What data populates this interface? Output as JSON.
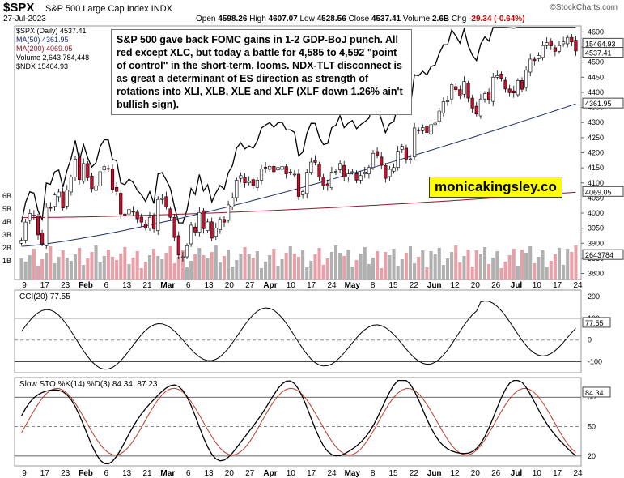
{
  "header": {
    "ticker": "$SPX",
    "subtitle": "S&P 500 Large Cap Index  INDX",
    "date": "27-Jul-2023",
    "open_label": "Open",
    "open": "4598.26",
    "high_label": "High",
    "high": "4607.07",
    "low_label": "Low",
    "low": "4528.56",
    "close_label": "Close",
    "close": "4537.41",
    "volume_label": "Volume",
    "volume": "2.6B",
    "chg_label": "Chg",
    "chg": "-29.34 (-0.64%)",
    "brand": "©StockCharts.com"
  },
  "legend": {
    "spx": "$SPX (Daily) 4537.41",
    "ma50": "MA(50) 4361.95",
    "ma200": "MA(200) 4069.05",
    "volume": "Volume 2,643,784,448",
    "ndx": "$NDX 15464.93"
  },
  "annotation": "S&P 500 gave back FOMC gains in 1-2 GDP-BoJ punch. All red except XLC, but today a battle for 4,585 to 4,592 \"point of control\" in the short-term, looms. NDX-TLT disconnect is as great a determinant of ES direction as strength of rotations into XLI, XLB, XLE and XLF (XLF down 1.26% ain't bullish sign).",
  "watermark": "monicakingsley.co",
  "colors": {
    "up": "#ffffff",
    "down": "#c8102e",
    "ma50": "#1f2d6b",
    "ma200": "#8a1a2a",
    "ndx": "#000000",
    "cci_fill": "#4e7a4e",
    "cci_neg_fill": "#8b5a4a",
    "sto_k": "#000000",
    "sto_d": "#c0392b",
    "vol_up": "#b0b0b0",
    "vol_down": "#e8a0a8"
  },
  "chart_data": [
    {
      "type": "candlestick",
      "title": "$SPX S&P 500 Large Cap Index INDX",
      "ylim": [
        3780,
        4620
      ],
      "y_ticks": [
        3800,
        3850,
        3900,
        3950,
        4000,
        4050,
        4100,
        4150,
        4200,
        4250,
        4300,
        4350,
        4400,
        4450,
        4500,
        4550,
        4600
      ],
      "x_tick_labels": [
        "9",
        "17",
        "23",
        "Feb",
        "6",
        "13",
        "21",
        "Mar",
        "6",
        "13",
        "20",
        "27",
        "Apr",
        "10",
        "17",
        "24",
        "May",
        "8",
        "15",
        "22",
        "Jun",
        "12",
        "20",
        "26",
        "Jul",
        "10",
        "17",
        "24"
      ],
      "right_labels": {
        "ndx_value": "15464.93",
        "close_value": "4537.41",
        "ma50_value": "4361.95",
        "ma200_value": "4069.05",
        "volume_value": "2643784"
      },
      "series": [
        {
          "name": "$SPX",
          "close": [
            3910,
            3970,
            3999,
            3990,
            3928,
            3898,
            4019,
            4016,
            4060,
            4070,
            4017,
            4076,
            4119,
            4179,
            4111,
            4164,
            4117,
            4081,
            4090,
            4137,
            4154,
            4147,
            4079,
            4072,
            3997,
            3991,
            4012,
            4003,
            3981,
            3970,
            3951,
            3986,
            3948,
            4045,
            4048,
            4020,
            3986,
            3919,
            3861,
            3855,
            3892,
            3960,
            3937,
            4002,
            3948,
            3971,
            3917,
            3951,
            3979,
            3970,
            4027,
            4051,
            4109,
            4124,
            4100,
            4105,
            4091,
            4109,
            4146,
            4151,
            4155,
            4137,
            4151,
            4154,
            4130,
            4134,
            4129,
            4055,
            4071,
            4135,
            4169,
            4168,
            4119,
            4091,
            4090,
            4136,
            4138,
            4164,
            4119,
            4130,
            4137,
            4109,
            4124,
            4136,
            4151,
            4198,
            4192,
            4158,
            4115,
            4145,
            4151,
            4205,
            4221,
            4179,
            4180,
            4282,
            4273,
            4283,
            4267,
            4293,
            4298,
            4338,
            4369,
            4372,
            4425,
            4409,
            4388,
            4436,
            4381,
            4348,
            4328,
            4378,
            4396,
            4376,
            4450,
            4455,
            4446,
            4411,
            4399,
            4398,
            4439,
            4410,
            4473,
            4510,
            4505,
            4522,
            4555,
            4565,
            4554,
            4536,
            4555,
            4567,
            4582,
            4567,
            4537
          ]
        },
        {
          "name": "MA(50)",
          "values_start": 3890,
          "values_end": 4361.95
        },
        {
          "name": "MA(200)",
          "values_start": 3985,
          "values_end": 4069.05
        },
        {
          "name": "$NDX",
          "note": "relative overlay, ends at 15464.93"
        }
      ]
    },
    {
      "type": "line",
      "title": "CCI(20) 77.55",
      "ylim": [
        -150,
        230
      ],
      "y_ticks": [
        200,
        100,
        0,
        -100
      ],
      "last_value": "77.55"
    },
    {
      "type": "line",
      "title": "Slow STO %K(14) %D(3) 84.34, 87.23",
      "ylim": [
        10,
        100
      ],
      "y_ticks": [
        80,
        50,
        20
      ],
      "series": [
        {
          "name": "%K",
          "last": 84.34
        },
        {
          "name": "%D",
          "last": 87.23
        }
      ],
      "last_value": "84.34"
    }
  ],
  "panel_titles": {
    "cci": "CCI(20) 77.55",
    "sto": "Slow STO %K(14) %D(3) 84.34, 87.23"
  },
  "volume_axis": [
    "6B",
    "5B",
    "4B",
    "3B",
    "2B",
    "1B"
  ]
}
